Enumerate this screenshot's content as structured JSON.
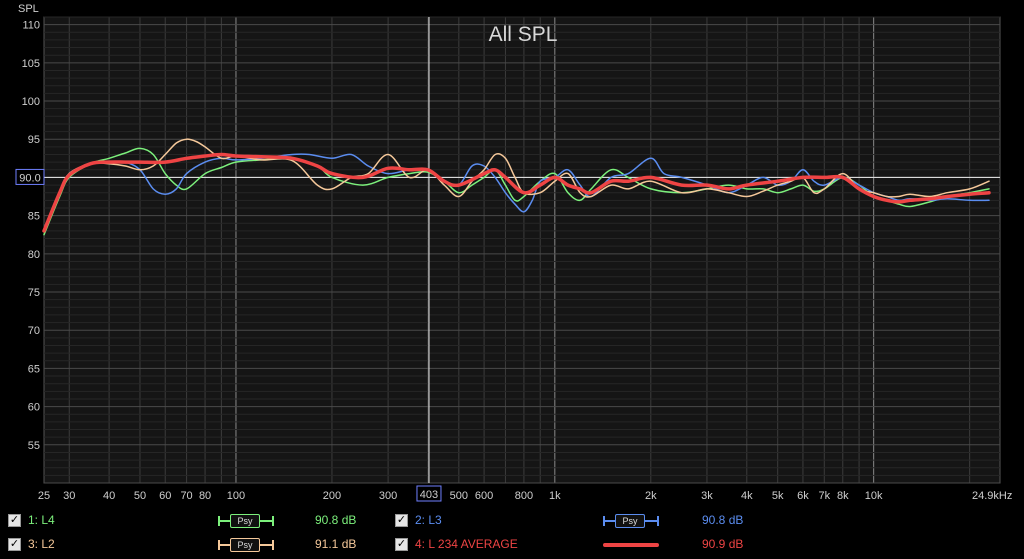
{
  "chart_data": {
    "type": "line",
    "title": "All SPL",
    "ylabel": "SPL",
    "xunit_label": "24.9kHz",
    "x_scale": "log",
    "xlim": [
      25,
      24900
    ],
    "ylim": [
      50,
      111
    ],
    "y_ticks": [
      55,
      60,
      65,
      70,
      75,
      80,
      85,
      90,
      95,
      100,
      105,
      110
    ],
    "y_tick_labels": [
      "55",
      "60",
      "65",
      "70",
      "75",
      "80",
      "85",
      "90",
      "95",
      "100",
      "105",
      "110"
    ],
    "x_ticks": [
      25,
      30,
      40,
      50,
      60,
      70,
      80,
      100,
      200,
      300,
      500,
      600,
      800,
      1000,
      2000,
      3000,
      4000,
      5000,
      6000,
      7000,
      8000,
      10000
    ],
    "x_tick_labels": [
      "25",
      "30",
      "40",
      "50",
      "60",
      "70",
      "80",
      "100",
      "200",
      "300",
      "500",
      "600",
      "800",
      "1k",
      "2k",
      "3k",
      "4k",
      "5k",
      "6k",
      "7k",
      "8k",
      "10k"
    ],
    "cursor": {
      "x": 403,
      "x_label": "403",
      "y": 90.0,
      "y_label": "90.0"
    },
    "grid": true,
    "series": [
      {
        "name": "1: L4",
        "color": "#7cf07c",
        "x": [
          25,
          28,
          30,
          35,
          40,
          45,
          50,
          55,
          60,
          65,
          70,
          80,
          90,
          100,
          120,
          150,
          180,
          200,
          250,
          300,
          350,
          400,
          450,
          500,
          550,
          600,
          650,
          700,
          750,
          800,
          900,
          1000,
          1100,
          1200,
          1300,
          1500,
          1700,
          2000,
          2500,
          3000,
          3500,
          4000,
          4500,
          5000,
          5500,
          6000,
          6500,
          7000,
          8000,
          9000,
          10000,
          11000,
          12000,
          13000,
          15000,
          17000,
          20000,
          23000
        ],
        "y": [
          82.5,
          87.5,
          90,
          91.8,
          92.5,
          93.2,
          93.8,
          93,
          90.5,
          89,
          88.5,
          90.5,
          91.3,
          92,
          92.3,
          92.5,
          91.5,
          90,
          89,
          90,
          90.5,
          90.7,
          89.5,
          88,
          89,
          90,
          91,
          89,
          87,
          87.5,
          89.5,
          90.5,
          88,
          87,
          88.5,
          91,
          90,
          88.5,
          88,
          88.5,
          89,
          88.5,
          88.5,
          88,
          88.5,
          89,
          88.2,
          88.5,
          90,
          89,
          87.5,
          87,
          86.5,
          86.2,
          86.8,
          87.5,
          88,
          88.5
        ]
      },
      {
        "name": "2: L3",
        "color": "#5b8df0",
        "x": [
          25,
          28,
          30,
          35,
          40,
          45,
          50,
          55,
          60,
          65,
          70,
          80,
          90,
          100,
          120,
          150,
          170,
          200,
          230,
          260,
          300,
          350,
          400,
          450,
          500,
          550,
          600,
          650,
          700,
          750,
          800,
          850,
          900,
          1000,
          1100,
          1200,
          1300,
          1500,
          1700,
          2000,
          2200,
          2500,
          3000,
          3500,
          4000,
          4500,
          5000,
          5500,
          6000,
          6500,
          7000,
          8000,
          9000,
          10000,
          11000,
          12000,
          13000,
          15000,
          17000,
          20000,
          23000
        ],
        "y": [
          83,
          88,
          90.5,
          91.8,
          92,
          92,
          91,
          88.5,
          87.8,
          88.5,
          90.5,
          92,
          92.5,
          92.3,
          92.5,
          93,
          93,
          92.5,
          93,
          91.5,
          90.5,
          91,
          91,
          89.5,
          89,
          91.5,
          91.5,
          90,
          88,
          86.5,
          85.5,
          87,
          89.5,
          90,
          91,
          89,
          87.5,
          90,
          90.5,
          92.5,
          90.5,
          90,
          89,
          88,
          89,
          90,
          89,
          89.5,
          91,
          89.5,
          89,
          90,
          89,
          88,
          87.5,
          87,
          87.2,
          87,
          87.2,
          87,
          87
        ]
      },
      {
        "name": "3: L2",
        "color": "#f5c89a",
        "x": [
          25,
          28,
          30,
          35,
          40,
          45,
          50,
          55,
          60,
          65,
          70,
          75,
          80,
          90,
          100,
          120,
          150,
          180,
          200,
          230,
          260,
          300,
          350,
          400,
          450,
          500,
          550,
          600,
          650,
          700,
          750,
          800,
          900,
          1000,
          1100,
          1200,
          1300,
          1500,
          1700,
          2000,
          2500,
          3000,
          3500,
          4000,
          4500,
          5000,
          5500,
          6000,
          6500,
          7000,
          8000,
          9000,
          10000,
          11000,
          12000,
          13000,
          15000,
          17000,
          20000,
          23000
        ],
        "y": [
          83,
          88,
          90.5,
          91.8,
          91.8,
          91.5,
          91,
          91.5,
          93,
          94.5,
          95,
          94.7,
          94,
          92.5,
          92.8,
          92.3,
          92.2,
          89,
          88.5,
          90,
          90.5,
          93,
          90,
          91,
          89,
          87.5,
          89.5,
          91,
          93,
          92.5,
          90,
          88,
          88,
          89.5,
          90.5,
          88,
          87.5,
          89,
          88.5,
          89.5,
          88,
          88.5,
          88,
          87.5,
          88.2,
          89,
          89.5,
          90,
          88,
          88.5,
          90.5,
          88.5,
          88,
          87.5,
          87.5,
          87.8,
          87.5,
          88,
          88.5,
          89.5
        ]
      },
      {
        "name": "4: L 234 AVERAGE",
        "color": "#ee4444",
        "x": [
          25,
          28,
          30,
          35,
          40,
          45,
          50,
          60,
          70,
          80,
          90,
          100,
          120,
          150,
          180,
          200,
          250,
          300,
          350,
          400,
          450,
          500,
          600,
          650,
          700,
          800,
          900,
          1000,
          1100,
          1200,
          1300,
          1500,
          1700,
          2000,
          2500,
          3000,
          3500,
          4000,
          5000,
          6000,
          7000,
          8000,
          9000,
          10000,
          11000,
          12000,
          13000,
          15000,
          17000,
          20000,
          23000
        ],
        "y": [
          83,
          88,
          90.3,
          91.8,
          92,
          92,
          92,
          92,
          92.5,
          92.8,
          93,
          92.8,
          92.7,
          92.5,
          91.5,
          90.5,
          90,
          91.2,
          91,
          91,
          89.5,
          89,
          90.5,
          91,
          90,
          88,
          89,
          90,
          89,
          88.5,
          88,
          89.5,
          89.5,
          90,
          89,
          89,
          88.5,
          89,
          89.5,
          90,
          90,
          90,
          88.5,
          87.5,
          87,
          86.8,
          87,
          87.2,
          87.5,
          87.8,
          88
        ]
      }
    ]
  },
  "legend": [
    {
      "checked": "✓",
      "label": "1: L4",
      "marker": "Psy",
      "value": "90.8 dB",
      "color": "#7cf07c"
    },
    {
      "checked": "✓",
      "label": "2: L3",
      "marker": "Psy",
      "value": "90.8 dB",
      "color": "#5b8df0"
    },
    {
      "checked": "✓",
      "label": "3: L2",
      "marker": "Psy",
      "value": "91.1 dB",
      "color": "#f5c89a"
    },
    {
      "checked": "✓",
      "label": "4: L 234 AVERAGE",
      "marker": "",
      "value": "90.9 dB",
      "color": "#ee4444"
    }
  ]
}
